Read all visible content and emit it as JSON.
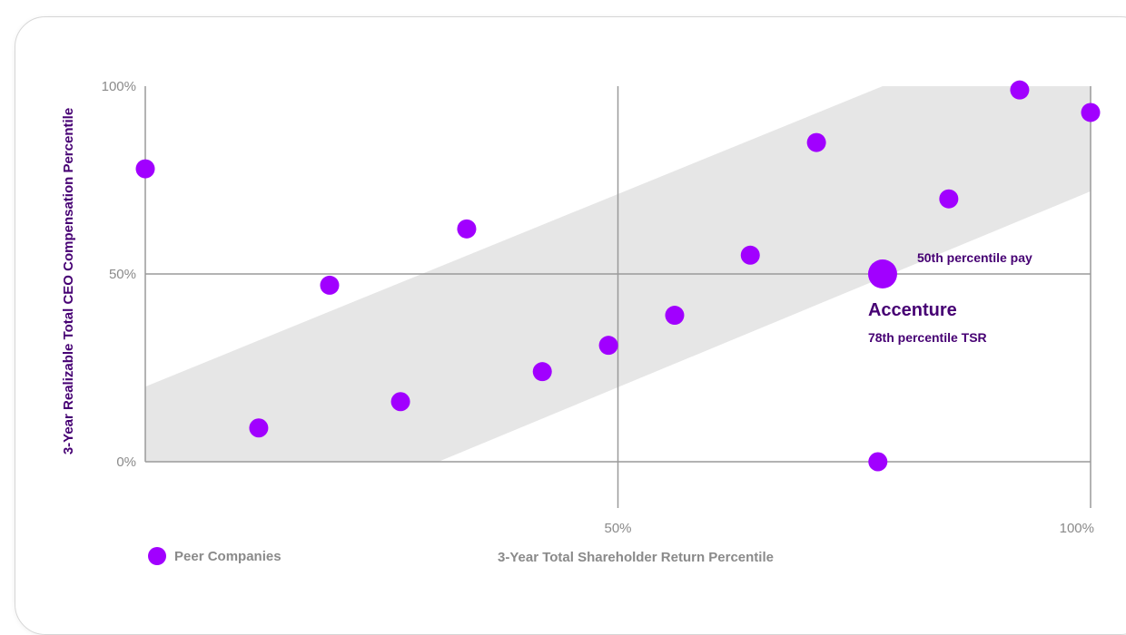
{
  "colors": {
    "accent": "#a100ff",
    "band": "#e6e6e6",
    "grid": "#9a9a9a",
    "muted_text": "#8a8a8a",
    "dark_purple": "#460073"
  },
  "chart_data": {
    "type": "scatter",
    "xlabel": "3-Year Total Shareholder Return Percentile",
    "ylabel": "3-Year Realizable Total CEO Compensation Percentile",
    "xlim": [
      0,
      100
    ],
    "ylim": [
      0,
      100
    ],
    "x_ticks": [
      {
        "value": 50,
        "label": "50%"
      },
      {
        "value": 100,
        "label": "100%"
      }
    ],
    "y_ticks": [
      {
        "value": 0,
        "label": "0%"
      },
      {
        "value": 50,
        "label": "50%"
      },
      {
        "value": 100,
        "label": "100%"
      }
    ],
    "grid": true,
    "alignment_band": {
      "upper": [
        [
          0,
          20
        ],
        [
          78,
          100
        ],
        [
          100,
          100
        ]
      ],
      "lower": [
        [
          0,
          0
        ],
        [
          31,
          0
        ],
        [
          100,
          72
        ]
      ]
    },
    "legend": {
      "position": "bottom-left",
      "entries": [
        "Peer Companies"
      ]
    },
    "series": [
      {
        "name": "Peer Companies",
        "points": [
          {
            "x": 0,
            "y": 78
          },
          {
            "x": 12,
            "y": 9
          },
          {
            "x": 19.5,
            "y": 47
          },
          {
            "x": 27,
            "y": 16
          },
          {
            "x": 34,
            "y": 62
          },
          {
            "x": 42,
            "y": 24
          },
          {
            "x": 49,
            "y": 31
          },
          {
            "x": 56,
            "y": 39
          },
          {
            "x": 64,
            "y": 55
          },
          {
            "x": 71,
            "y": 85
          },
          {
            "x": 77.5,
            "y": 0
          },
          {
            "x": 85,
            "y": 70
          },
          {
            "x": 92.5,
            "y": 99
          },
          {
            "x": 100,
            "y": 93
          }
        ]
      }
    ],
    "highlight": {
      "name": "Accenture",
      "x": 78,
      "y": 50,
      "pay_label": "50th percentile pay",
      "tsr_label": "78th percentile TSR"
    }
  }
}
